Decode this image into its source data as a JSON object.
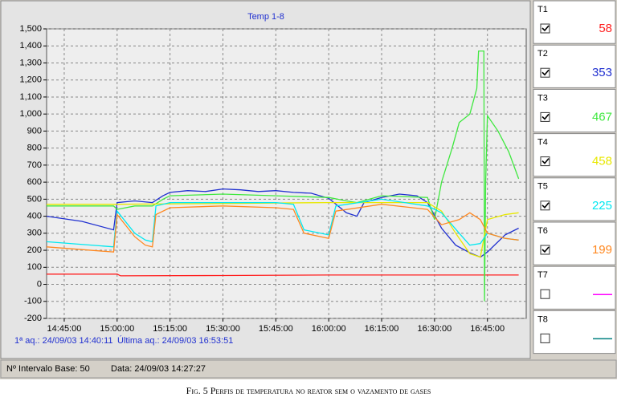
{
  "chart_data": {
    "type": "line",
    "title": "Temp 1-8",
    "xlim": [
      "14:40:00",
      "16:56:00"
    ],
    "xticks": [
      "14:45:00",
      "15:00:00",
      "15:15:00",
      "15:30:00",
      "15:45:00",
      "16:00:00",
      "16:15:00",
      "16:30:00",
      "16:45:00"
    ],
    "ylim": [
      -200,
      1500
    ],
    "yticks": [
      {
        "value": 1500,
        "label": "1,500"
      },
      {
        "value": 1400,
        "label": "1,400"
      },
      {
        "value": 1300,
        "label": "1,300"
      },
      {
        "value": 1200,
        "label": "1,200"
      },
      {
        "value": 1100,
        "label": "1,100"
      },
      {
        "value": 1000,
        "label": "1,000"
      },
      900,
      800,
      700,
      600,
      500,
      400,
      300,
      200,
      100,
      0,
      -100,
      -200
    ],
    "grid": true,
    "series": [
      {
        "name": "T1",
        "color": "#ff2020",
        "checked": true,
        "reading": 58,
        "x": [
          "14:40",
          "15:00",
          "15:01",
          "15:30",
          "16:00",
          "16:30",
          "16:53:51"
        ],
        "values": [
          60,
          60,
          50,
          52,
          55,
          55,
          55
        ]
      },
      {
        "name": "T2",
        "color": "#2030d0",
        "checked": true,
        "reading": 353,
        "x": [
          "14:40",
          "14:50",
          "14:59",
          "15:00",
          "15:05",
          "15:10",
          "15:13",
          "15:15",
          "15:20",
          "15:25",
          "15:30",
          "15:35",
          "15:40",
          "15:45",
          "15:50",
          "15:55",
          "16:00",
          "16:05",
          "16:08",
          "16:10",
          "16:15",
          "16:20",
          "16:25",
          "16:28",
          "16:32",
          "16:36",
          "16:40",
          "16:43",
          "16:45",
          "16:50",
          "16:53:51"
        ],
        "values": [
          400,
          370,
          320,
          480,
          490,
          480,
          520,
          540,
          550,
          545,
          560,
          555,
          545,
          550,
          540,
          535,
          505,
          420,
          400,
          480,
          510,
          530,
          520,
          480,
          330,
          230,
          185,
          160,
          190,
          290,
          330
        ]
      },
      {
        "name": "T3",
        "color": "#40e840",
        "checked": true,
        "reading": 467,
        "x": [
          "14:40",
          "14:59",
          "15:00",
          "15:05",
          "15:10",
          "15:13",
          "15:15",
          "15:30",
          "15:45",
          "16:00",
          "16:05",
          "16:08",
          "16:15",
          "16:28",
          "16:30",
          "16:32",
          "16:35",
          "16:37",
          "16:40",
          "16:42",
          "16:42:30",
          "16:44",
          "16:44:10",
          "16:44:30",
          "16:45",
          "16:48",
          "16:51",
          "16:53:51"
        ],
        "values": [
          460,
          460,
          440,
          460,
          460,
          500,
          520,
          530,
          520,
          510,
          490,
          480,
          520,
          510,
          380,
          600,
          800,
          950,
          1000,
          1150,
          1370,
          1370,
          -100,
          600,
          990,
          900,
          780,
          620
        ]
      },
      {
        "name": "T4",
        "color": "#e8e800",
        "checked": true,
        "reading": 458,
        "x": [
          "14:40",
          "15:00",
          "15:30",
          "16:00",
          "16:28",
          "16:32",
          "16:36",
          "16:40",
          "16:43",
          "16:45",
          "16:50",
          "16:53:51"
        ],
        "values": [
          470,
          470,
          475,
          480,
          480,
          430,
          300,
          180,
          160,
          380,
          410,
          420
        ]
      },
      {
        "name": "T5",
        "color": "#00e8f0",
        "checked": true,
        "reading": 225,
        "x": [
          "14:40",
          "14:59",
          "15:00",
          "15:05",
          "15:08",
          "15:10",
          "15:11",
          "15:15",
          "15:30",
          "15:45",
          "15:50",
          "15:53",
          "16:00",
          "16:02",
          "16:15",
          "16:28",
          "16:32",
          "16:37",
          "16:40",
          "16:43",
          "16:45",
          "16:50",
          "16:53:51"
        ],
        "values": [
          250,
          220,
          430,
          300,
          260,
          250,
          460,
          480,
          480,
          480,
          470,
          320,
          290,
          460,
          500,
          460,
          420,
          300,
          230,
          240,
          300,
          270,
          260
        ]
      },
      {
        "name": "T6",
        "color": "#ff8820",
        "checked": true,
        "reading": 199,
        "x": [
          "14:40",
          "14:59",
          "15:00",
          "15:05",
          "15:08",
          "15:10",
          "15:11",
          "15:15",
          "15:30",
          "15:45",
          "15:50",
          "15:53",
          "16:00",
          "16:02",
          "16:15",
          "16:28",
          "16:32",
          "16:37",
          "16:40",
          "16:43",
          "16:45",
          "16:50",
          "16:53:51"
        ],
        "values": [
          220,
          190,
          410,
          280,
          230,
          220,
          410,
          450,
          460,
          450,
          440,
          300,
          270,
          430,
          470,
          440,
          350,
          380,
          420,
          380,
          300,
          270,
          260
        ]
      },
      {
        "name": "T7",
        "color": "#ff00ff",
        "checked": false,
        "x": [],
        "values": []
      },
      {
        "name": "T8",
        "color": "#008080",
        "checked": false,
        "x": [],
        "values": []
      }
    ]
  },
  "acquisition": {
    "first": "1ª aq.: 24/09/03 14:40:11",
    "last": "Última aq.: 24/09/03 16:53:51"
  },
  "status": {
    "interval": "Nº Intervalo Base: 50",
    "date": "Data: 24/09/03 14:27:27"
  },
  "caption": "Fig. 5 Perfis de temperatura no reator sem o vazamento de gases"
}
